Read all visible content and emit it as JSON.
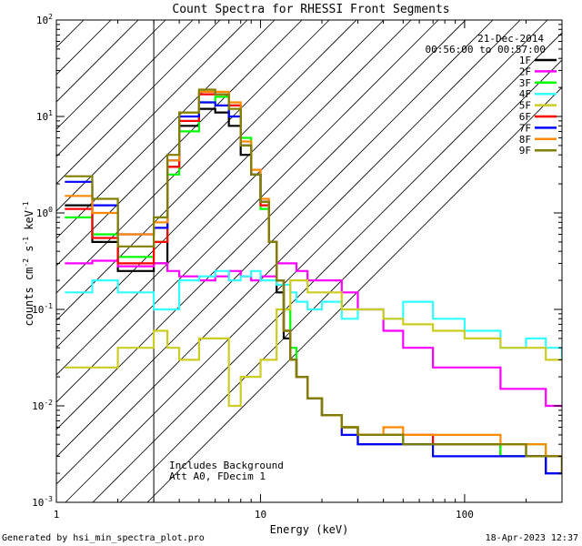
{
  "footer": {
    "generated_by": "Generated by hsi_min_spectra_plot.pro",
    "plot_timestamp": "18-Apr-2023 12:37"
  },
  "annotations": {
    "date": "21-Dec-2014",
    "time_range": "00:56:00 to 00:57:00",
    "background_note": "Includes Background",
    "attenuator_note": "Att A0, FDecim 1"
  },
  "colors": {
    "1F": "#000000",
    "2F": "#ff00ff",
    "3F": "#00ff00",
    "4F": "#33ffff",
    "5F": "#cccc22",
    "6F": "#ff0000",
    "7F": "#0000ff",
    "8F": "#ff8800",
    "9F": "#808000"
  },
  "chart_data": {
    "type": "line",
    "title": "Count Spectra for RHESSI Front Segments",
    "xlabel": "Energy (keV)",
    "ylabel": "counts cm⁻² s⁻¹ keV⁻¹",
    "xscale": "log",
    "yscale": "log",
    "xlim": [
      1,
      300
    ],
    "ylim": [
      0.001,
      100
    ],
    "x_ticks": [
      {
        "value": 1,
        "label": "1"
      },
      {
        "value": 10,
        "label": "10"
      },
      {
        "value": 100,
        "label": "100"
      }
    ],
    "y_ticks": [
      {
        "value": 0.001,
        "label": "10",
        "exp": "-3"
      },
      {
        "value": 0.01,
        "label": "10",
        "exp": "-2"
      },
      {
        "value": 0.1,
        "label": "10",
        "exp": "-1"
      },
      {
        "value": 1,
        "label": "10",
        "exp": "0"
      },
      {
        "value": 10,
        "label": "10",
        "exp": "1"
      },
      {
        "value": 100,
        "label": "10",
        "exp": "2"
      }
    ],
    "excluded_region_keV": [
      1,
      3
    ],
    "series": [
      {
        "name": "1F",
        "x": [
          1.1,
          1.5,
          2,
          3,
          3.5,
          4,
          5,
          6,
          7,
          8,
          9,
          10,
          11,
          12,
          13,
          14,
          15,
          17,
          20,
          25,
          30,
          40,
          50,
          70,
          100,
          150,
          200,
          250,
          300
        ],
        "y": [
          1.2,
          0.5,
          0.25,
          0.3,
          3,
          8,
          12,
          11,
          8,
          4,
          2.5,
          1.3,
          0.5,
          0.15,
          0.05,
          0.03,
          0.02,
          0.012,
          0.008,
          0.006,
          0.004,
          0.004,
          0.004,
          0.004,
          0.004,
          0.003,
          0.003,
          0.002,
          0.002
        ]
      },
      {
        "name": "2F",
        "x": [
          1.1,
          1.5,
          2,
          3,
          3.5,
          4,
          5,
          6,
          7,
          8,
          9,
          10,
          12,
          14,
          15,
          17,
          20,
          25,
          30,
          40,
          50,
          70,
          100,
          150,
          200,
          250,
          300
        ],
        "y": [
          0.3,
          0.32,
          0.28,
          0.3,
          0.25,
          0.22,
          0.2,
          0.22,
          0.25,
          0.22,
          0.2,
          0.22,
          0.3,
          0.3,
          0.25,
          0.2,
          0.2,
          0.15,
          0.1,
          0.06,
          0.04,
          0.025,
          0.025,
          0.015,
          0.015,
          0.01,
          0.01
        ]
      },
      {
        "name": "3F",
        "x": [
          1.1,
          1.5,
          2,
          3,
          3.5,
          4,
          5,
          6,
          7,
          8,
          9,
          10,
          11,
          12,
          13,
          14,
          15,
          17,
          20,
          25,
          30,
          40,
          50,
          70,
          100,
          150,
          200,
          250,
          300
        ],
        "y": [
          0.9,
          0.6,
          0.35,
          0.5,
          2.5,
          7,
          14,
          16,
          13,
          6,
          2.5,
          1.1,
          0.5,
          0.2,
          0.1,
          0.04,
          0.02,
          0.012,
          0.008,
          0.006,
          0.005,
          0.005,
          0.004,
          0.004,
          0.004,
          0.003,
          0.004,
          0.003,
          0.002
        ]
      },
      {
        "name": "4F",
        "x": [
          1.1,
          1.5,
          2,
          3,
          4,
          5,
          6,
          7,
          8,
          9,
          10,
          12,
          14,
          15,
          17,
          20,
          25,
          30,
          40,
          50,
          70,
          100,
          150,
          200,
          250,
          300
        ],
        "y": [
          0.15,
          0.2,
          0.15,
          0.1,
          0.2,
          0.22,
          0.25,
          0.2,
          0.22,
          0.25,
          0.2,
          0.18,
          0.15,
          0.12,
          0.1,
          0.12,
          0.08,
          0.1,
          0.08,
          0.12,
          0.08,
          0.06,
          0.04,
          0.05,
          0.04,
          0.03
        ]
      },
      {
        "name": "5F",
        "x": [
          1.1,
          1.5,
          2,
          3,
          3.5,
          4,
          5,
          6,
          7,
          8,
          9,
          10,
          12,
          14,
          15,
          17,
          20,
          25,
          30,
          40,
          50,
          70,
          100,
          150,
          200,
          250,
          300
        ],
        "y": [
          0.025,
          0.025,
          0.04,
          0.06,
          0.04,
          0.03,
          0.05,
          0.05,
          0.01,
          0.02,
          0.02,
          0.03,
          0.1,
          0.2,
          0.2,
          0.15,
          0.15,
          0.1,
          0.1,
          0.08,
          0.07,
          0.06,
          0.05,
          0.04,
          0.04,
          0.03,
          0.03
        ]
      },
      {
        "name": "6F",
        "x": [
          1.1,
          1.5,
          2,
          3,
          3.5,
          4,
          5,
          6,
          7,
          8,
          9,
          10,
          11,
          12,
          13,
          14,
          15,
          17,
          20,
          25,
          30,
          40,
          50,
          70,
          100,
          150,
          200,
          250,
          300
        ],
        "y": [
          1.1,
          0.55,
          0.3,
          0.5,
          3,
          9,
          17,
          17,
          13,
          5,
          2.5,
          1.2,
          0.5,
          0.2,
          0.06,
          0.03,
          0.02,
          0.012,
          0.008,
          0.006,
          0.005,
          0.005,
          0.005,
          0.004,
          0.004,
          0.004,
          0.003,
          0.003,
          0.002
        ]
      },
      {
        "name": "7F",
        "x": [
          1.1,
          1.5,
          2,
          3,
          3.5,
          4,
          5,
          6,
          7,
          8,
          9,
          10,
          11,
          12,
          13,
          14,
          15,
          17,
          20,
          25,
          30,
          40,
          50,
          70,
          100,
          150,
          200,
          250,
          300
        ],
        "y": [
          2.1,
          1.2,
          0.6,
          0.7,
          3.5,
          10,
          14,
          13,
          10,
          5,
          2.5,
          1.3,
          0.5,
          0.2,
          0.06,
          0.03,
          0.02,
          0.012,
          0.008,
          0.005,
          0.004,
          0.004,
          0.004,
          0.003,
          0.003,
          0.003,
          0.003,
          0.002,
          0.002
        ]
      },
      {
        "name": "8F",
        "x": [
          1.1,
          1.5,
          2,
          3,
          3.5,
          4,
          5,
          6,
          7,
          8,
          9,
          10,
          11,
          12,
          13,
          14,
          15,
          17,
          20,
          25,
          30,
          40,
          50,
          70,
          100,
          150,
          200,
          250,
          300
        ],
        "y": [
          1.5,
          1,
          0.6,
          0.8,
          3.5,
          11,
          18,
          18,
          14,
          5.5,
          2.8,
          1.4,
          0.5,
          0.2,
          0.06,
          0.03,
          0.02,
          0.012,
          0.008,
          0.006,
          0.005,
          0.006,
          0.005,
          0.005,
          0.005,
          0.004,
          0.004,
          0.003,
          0.002
        ]
      },
      {
        "name": "9F",
        "x": [
          1.1,
          1.5,
          2,
          3,
          3.5,
          4,
          5,
          6,
          7,
          8,
          9,
          10,
          11,
          12,
          13,
          14,
          15,
          17,
          20,
          25,
          30,
          40,
          50,
          70,
          100,
          150,
          200,
          250,
          300
        ],
        "y": [
          2.4,
          1.4,
          0.45,
          0.9,
          4,
          11,
          19,
          17,
          12,
          5,
          2.5,
          1.3,
          0.5,
          0.2,
          0.06,
          0.03,
          0.02,
          0.012,
          0.008,
          0.006,
          0.005,
          0.005,
          0.004,
          0.004,
          0.004,
          0.004,
          0.003,
          0.003,
          0.002
        ]
      }
    ]
  }
}
